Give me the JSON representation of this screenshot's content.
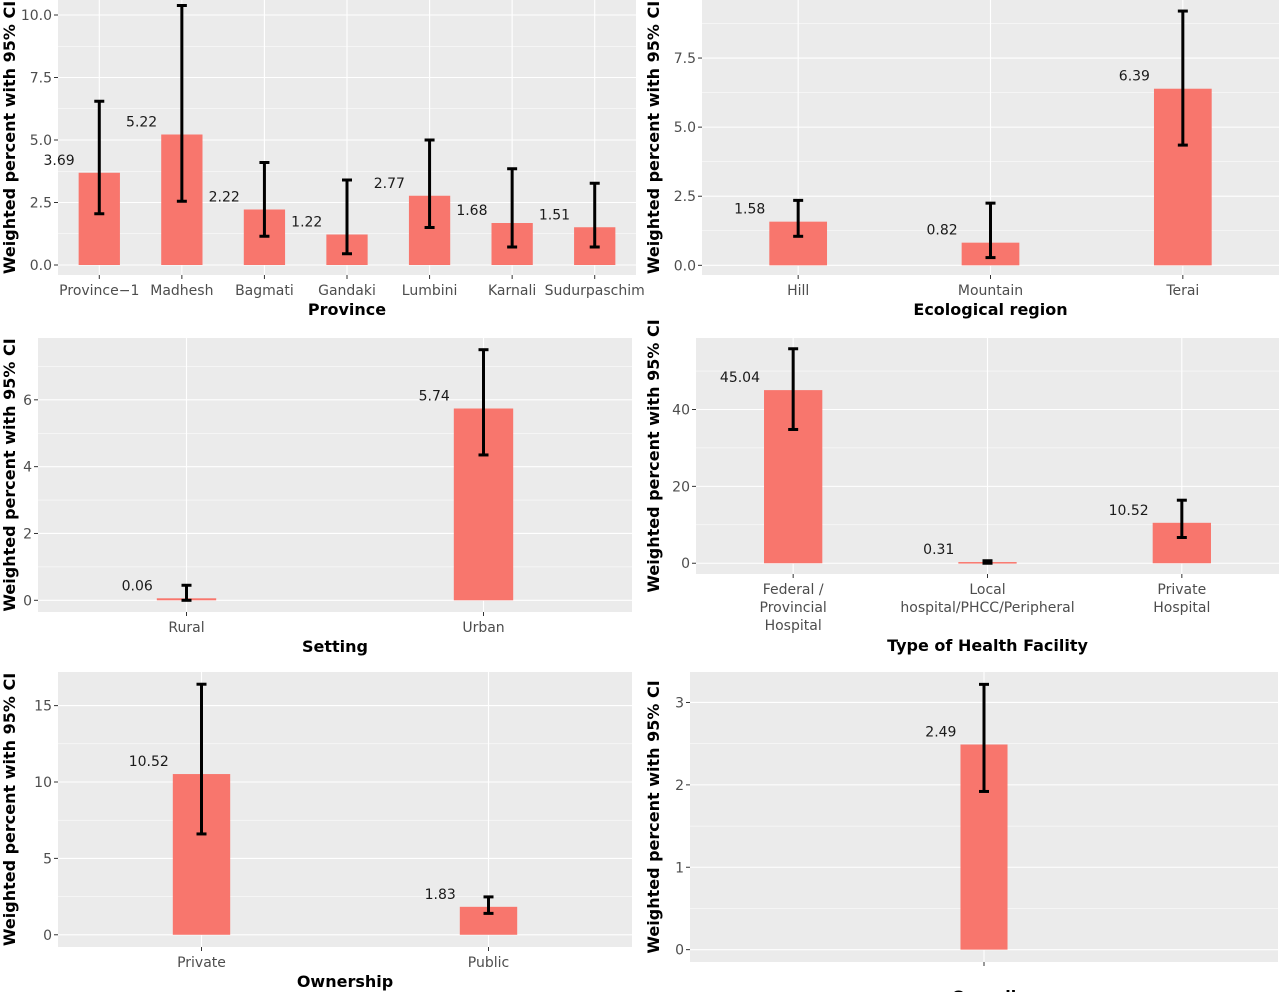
{
  "colors": {
    "panel_bg": "#ebebeb",
    "grid": "#ffffff",
    "bar": "#f8766d",
    "errorbar": "#000000"
  },
  "chart_data": [
    {
      "type": "bar",
      "title": "",
      "xlabel": "Province",
      "ylabel": "Weighted percent with 95% CI",
      "categories": [
        "Province−1",
        "Madhesh",
        "Bagmati",
        "Gandaki",
        "Lumbini",
        "Karnali",
        "Sudurpaschim"
      ],
      "values": [
        3.69,
        5.22,
        2.22,
        1.22,
        2.77,
        1.68,
        1.51
      ],
      "value_labels": [
        "3.69",
        "5.22",
        "2.22",
        "1.22",
        "2.77",
        "1.68",
        "1.51"
      ],
      "ci_lower": [
        2.05,
        2.55,
        1.15,
        0.45,
        1.5,
        0.72,
        0.72
      ],
      "ci_upper": [
        6.55,
        10.38,
        4.1,
        3.4,
        5.0,
        3.85,
        3.27
      ],
      "ylim": [
        -0.4,
        10.6
      ],
      "yticks": [
        "0.0",
        "2.5",
        "5.0",
        "7.5",
        "10.0"
      ],
      "grid": true,
      "legend": "none"
    },
    {
      "type": "bar",
      "title": "",
      "xlabel": "Ecological region",
      "ylabel": "Weighted percent with 95% CI",
      "categories": [
        "Hill",
        "Mountain",
        "Terai"
      ],
      "values": [
        1.58,
        0.82,
        6.39
      ],
      "value_labels": [
        "1.58",
        "0.82",
        "6.39"
      ],
      "ci_lower": [
        1.05,
        0.28,
        4.35
      ],
      "ci_upper": [
        2.35,
        2.25,
        9.2
      ],
      "ylim": [
        -0.35,
        9.6
      ],
      "yticks": [
        "0.0",
        "2.5",
        "5.0",
        "7.5"
      ],
      "grid": true,
      "legend": "none"
    },
    {
      "type": "bar",
      "title": "",
      "xlabel": "Setting",
      "ylabel": "Weighted percent with 95% CI",
      "categories": [
        "Rural",
        "Urban"
      ],
      "values": [
        0.06,
        5.74
      ],
      "value_labels": [
        "0.06",
        "5.74"
      ],
      "ci_lower": [
        0.0,
        4.35
      ],
      "ci_upper": [
        0.45,
        7.5
      ],
      "ylim": [
        -0.35,
        7.85
      ],
      "yticks": [
        "0",
        "2",
        "4",
        "6"
      ],
      "grid": true,
      "legend": "none"
    },
    {
      "type": "bar",
      "title": "",
      "xlabel": "Type of Health Facility",
      "ylabel": "Weighted percent with 95% CI",
      "categories": [
        [
          "Federal /",
          "Provincial",
          "Hospital"
        ],
        [
          "Local",
          "hospital/PHCC/Peripheral"
        ],
        [
          "Private",
          "Hospital"
        ]
      ],
      "values": [
        45.04,
        0.31,
        10.52
      ],
      "value_labels": [
        "45.04",
        "0.31",
        "10.52"
      ],
      "ci_lower": [
        34.8,
        0.0,
        6.7
      ],
      "ci_upper": [
        55.8,
        0.65,
        16.4
      ],
      "ylim": [
        -2.8,
        58.6
      ],
      "yticks": [
        "0",
        "20",
        "40"
      ],
      "grid": true,
      "legend": "none"
    },
    {
      "type": "bar",
      "title": "",
      "xlabel": "Ownership",
      "ylabel": "Weighted percent with 95% CI",
      "categories": [
        "Private",
        "Public"
      ],
      "values": [
        10.52,
        1.83
      ],
      "value_labels": [
        "10.52",
        "1.83"
      ],
      "ci_lower": [
        6.6,
        1.4
      ],
      "ci_upper": [
        16.4,
        2.48
      ],
      "ylim": [
        -0.8,
        17.2
      ],
      "yticks": [
        "0",
        "5",
        "10",
        "15"
      ],
      "grid": true,
      "legend": "none"
    },
    {
      "type": "bar",
      "title": "",
      "xlabel": "Overall",
      "ylabel": "Weighted percent with 95% CI",
      "categories": [
        ""
      ],
      "values": [
        2.49
      ],
      "value_labels": [
        "2.49"
      ],
      "ci_lower": [
        1.92
      ],
      "ci_upper": [
        3.22
      ],
      "ylim": [
        -0.15,
        3.37
      ],
      "yticks": [
        "0",
        "1",
        "2",
        "3"
      ],
      "grid": true,
      "legend": "none"
    }
  ]
}
